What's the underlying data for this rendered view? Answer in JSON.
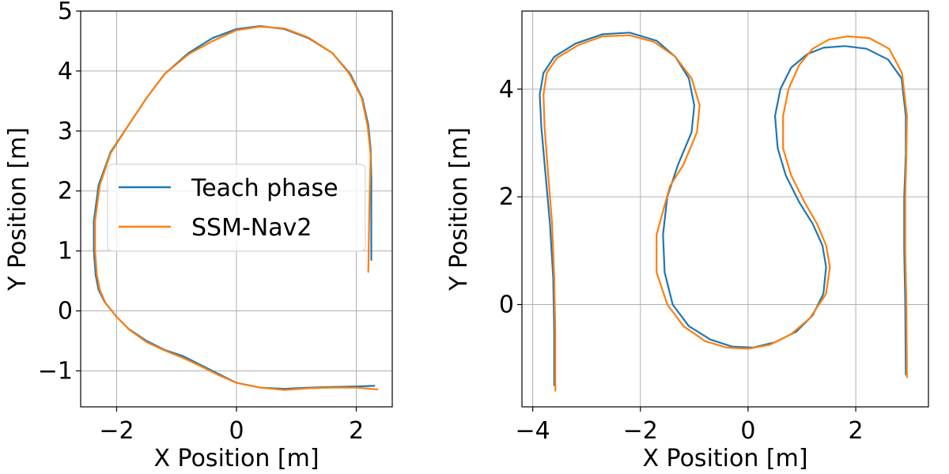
{
  "chart_data": [
    {
      "type": "line",
      "xlabel": "X Position [m]",
      "ylabel": "Y Position [m]",
      "xlim": [
        -2.6,
        2.6
      ],
      "ylim": [
        -1.6,
        5.0
      ],
      "xticks": [
        -2,
        0,
        2
      ],
      "xtick_labels": [
        "−2",
        "0",
        "2"
      ],
      "yticks": [
        -1,
        0,
        1,
        2,
        3,
        4,
        5
      ],
      "ytick_labels": [
        "−1",
        "0",
        "1",
        "2",
        "3",
        "4",
        "5"
      ],
      "grid": true,
      "legend": {
        "placement": "center-right"
      },
      "series": [
        {
          "name": "Teach phase",
          "color": "#1f77b4",
          "x": [
            2.25,
            2.25,
            2.24,
            2.2,
            2.1,
            1.9,
            1.6,
            1.2,
            0.8,
            0.4,
            0.0,
            -0.4,
            -0.8,
            -1.2,
            -1.5,
            -1.8,
            -2.1,
            -2.3,
            -2.38,
            -2.38,
            -2.35,
            -2.3,
            -2.2,
            -2.0,
            -1.8,
            -1.5,
            -1.2,
            -0.9,
            -0.6,
            -0.3,
            0.0,
            0.4,
            0.8,
            1.2,
            1.6,
            2.0,
            2.3
          ],
          "y": [
            0.85,
            2.2,
            2.7,
            3.1,
            3.55,
            3.95,
            4.3,
            4.55,
            4.7,
            4.75,
            4.7,
            4.55,
            4.3,
            3.95,
            3.55,
            3.1,
            2.65,
            2.1,
            1.5,
            1.0,
            0.6,
            0.35,
            0.15,
            -0.1,
            -0.3,
            -0.5,
            -0.65,
            -0.75,
            -0.9,
            -1.05,
            -1.2,
            -1.28,
            -1.3,
            -1.28,
            -1.27,
            -1.26,
            -1.25
          ]
        },
        {
          "name": "SSM-Nav2",
          "color": "#ff7f0e",
          "x": [
            2.2,
            2.22,
            2.24,
            2.19,
            2.09,
            1.88,
            1.6,
            1.2,
            0.8,
            0.4,
            0.0,
            -0.4,
            -0.8,
            -1.2,
            -1.5,
            -1.8,
            -2.1,
            -2.28,
            -2.36,
            -2.36,
            -2.33,
            -2.28,
            -2.18,
            -1.98,
            -1.78,
            -1.5,
            -1.2,
            -0.9,
            -0.6,
            -0.3,
            0.0,
            0.4,
            0.8,
            1.2,
            1.6,
            2.0,
            2.35
          ],
          "y": [
            0.65,
            1.8,
            2.6,
            3.08,
            3.55,
            3.96,
            4.3,
            4.56,
            4.71,
            4.74,
            4.68,
            4.5,
            4.28,
            3.95,
            3.55,
            3.1,
            2.63,
            2.1,
            1.5,
            1.0,
            0.6,
            0.35,
            0.12,
            -0.12,
            -0.32,
            -0.52,
            -0.66,
            -0.78,
            -0.92,
            -1.07,
            -1.2,
            -1.28,
            -1.32,
            -1.29,
            -1.28,
            -1.28,
            -1.31
          ]
        }
      ]
    },
    {
      "type": "line",
      "xlabel": "X Position [m]",
      "ylabel": "Y Position [m]",
      "xlim": [
        -4.2,
        3.35
      ],
      "ylim": [
        -1.9,
        5.45
      ],
      "xticks": [
        -4,
        -2,
        0,
        2
      ],
      "xtick_labels": [
        "−4",
        "−2",
        "0",
        "2"
      ],
      "yticks": [
        0,
        2,
        4
      ],
      "ytick_labels": [
        "0",
        "2",
        "4"
      ],
      "grid": true,
      "series": [
        {
          "name": "",
          "color": "#1f77b4",
          "x": [
            -3.6,
            -3.6,
            -3.62,
            -3.68,
            -3.77,
            -3.84,
            -3.87,
            -3.8,
            -3.6,
            -3.2,
            -2.7,
            -2.2,
            -1.7,
            -1.35,
            -1.1,
            -1.0,
            -1.05,
            -1.3,
            -1.5,
            -1.58,
            -1.55,
            -1.4,
            -1.1,
            -0.7,
            -0.3,
            0.1,
            0.5,
            0.9,
            1.2,
            1.4,
            1.45,
            1.38,
            1.2,
            0.95,
            0.7,
            0.55,
            0.5,
            0.6,
            0.8,
            1.1,
            1.4,
            1.8,
            2.2,
            2.6,
            2.85,
            2.93,
            2.93,
            2.9,
            2.9,
            2.92,
            2.93
          ],
          "y": [
            -1.5,
            -0.5,
            0.5,
            1.5,
            2.5,
            3.3,
            3.9,
            4.3,
            4.6,
            4.85,
            5.02,
            5.05,
            4.9,
            4.6,
            4.2,
            3.7,
            3.2,
            2.6,
            2.0,
            1.3,
            0.6,
            0.0,
            -0.4,
            -0.65,
            -0.78,
            -0.8,
            -0.7,
            -0.5,
            -0.2,
            0.2,
            0.7,
            1.1,
            1.5,
            1.9,
            2.4,
            2.9,
            3.5,
            4.0,
            4.4,
            4.65,
            4.77,
            4.8,
            4.75,
            4.55,
            4.2,
            3.5,
            2.8,
            2.0,
            1.0,
            0.0,
            -1.3
          ]
        },
        {
          "name": "",
          "color": "#ff7f0e",
          "x": [
            -3.58,
            -3.58,
            -3.6,
            -3.64,
            -3.72,
            -3.78,
            -3.8,
            -3.74,
            -3.55,
            -3.15,
            -2.7,
            -2.2,
            -1.75,
            -1.35,
            -1.05,
            -0.9,
            -0.95,
            -1.2,
            -1.45,
            -1.7,
            -1.7,
            -1.5,
            -1.2,
            -0.8,
            -0.4,
            0.0,
            0.4,
            0.8,
            1.15,
            1.45,
            1.52,
            1.45,
            1.28,
            1.05,
            0.8,
            0.65,
            0.65,
            0.75,
            0.95,
            1.2,
            1.5,
            1.85,
            2.25,
            2.62,
            2.86,
            2.95,
            2.94,
            2.92,
            2.92,
            2.94,
            2.95
          ],
          "y": [
            -1.6,
            -0.5,
            0.5,
            1.5,
            2.5,
            3.3,
            3.9,
            4.3,
            4.58,
            4.82,
            4.98,
            5.0,
            4.88,
            4.6,
            4.2,
            3.7,
            3.2,
            2.6,
            2.2,
            1.3,
            0.6,
            0.0,
            -0.4,
            -0.68,
            -0.8,
            -0.82,
            -0.75,
            -0.55,
            -0.25,
            0.2,
            0.7,
            1.1,
            1.5,
            1.9,
            2.4,
            2.9,
            3.5,
            4.0,
            4.45,
            4.75,
            4.92,
            4.98,
            4.95,
            4.75,
            4.3,
            3.5,
            2.8,
            2.0,
            1.0,
            0.0,
            -1.35
          ]
        }
      ]
    }
  ]
}
